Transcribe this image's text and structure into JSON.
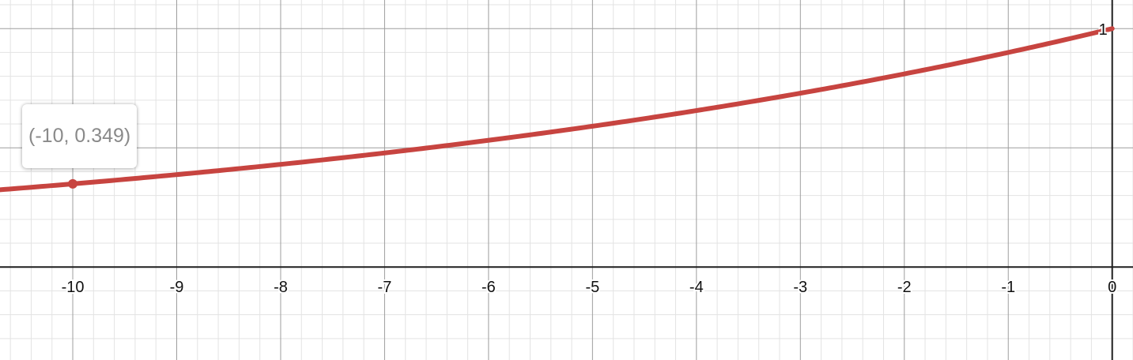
{
  "chart_data": {
    "type": "line",
    "xlim": [
      -10.7,
      0.2
    ],
    "ylim": [
      -0.39,
      1.12
    ],
    "grid": true,
    "x_ticks": [
      -10,
      -9,
      -8,
      -7,
      -6,
      -5,
      -4,
      -3,
      -2,
      -1,
      0
    ],
    "x_tick_labels": [
      "-10",
      "-9",
      "-8",
      "-7",
      "-6",
      "-5",
      "-4",
      "-3",
      "-2",
      "-1",
      "0"
    ],
    "y_ticks": [
      1
    ],
    "y_tick_labels": [
      "1"
    ],
    "series": [
      {
        "x": [
          -10.7,
          -10,
          -9,
          -8,
          -7,
          -6,
          -5,
          -4,
          -3,
          -2,
          -1,
          0
        ],
        "y": [
          0.324,
          0.349,
          0.386,
          0.43,
          0.478,
          0.532,
          0.592,
          0.658,
          0.732,
          0.814,
          0.905,
          1.0
        ],
        "color": "#c74440"
      }
    ],
    "highlighted_point": {
      "x": -10,
      "y": 0.349,
      "label": "(-10, 0.349)"
    }
  }
}
